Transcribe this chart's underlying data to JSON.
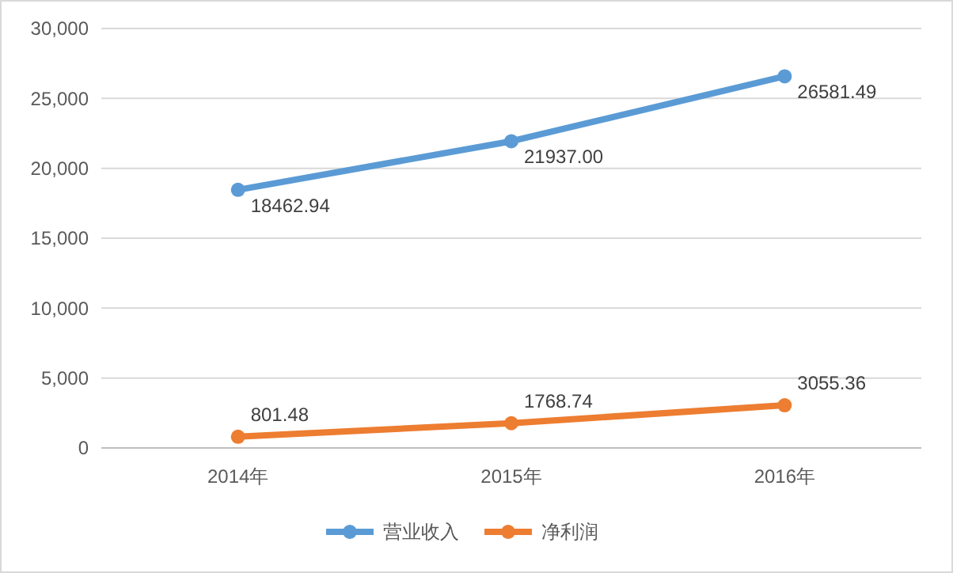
{
  "chart_data": {
    "type": "line",
    "categories": [
      "2014年",
      "2015年",
      "2016年"
    ],
    "series": [
      {
        "name": "营业收入",
        "color": "#5b9bd5",
        "values": [
          18462.94,
          21937.0,
          26581.49
        ],
        "value_labels": [
          "18462.94",
          "21937.00",
          "26581.49"
        ]
      },
      {
        "name": "净利润",
        "color": "#ed7d31",
        "values": [
          801.48,
          1768.74,
          3055.36
        ],
        "value_labels": [
          "801.48",
          "1768.74",
          "3055.36"
        ]
      }
    ],
    "ylim": [
      0,
      30000
    ],
    "yticks": [
      0,
      {
        "value": 5000,
        "label": "5,000"
      },
      {
        "value": 10000,
        "label": "10,000"
      },
      {
        "value": 15000,
        "label": "15,000"
      },
      {
        "value": 20000,
        "label": "20,000"
      },
      {
        "value": 25000,
        "label": "25,000"
      },
      {
        "value": 30000,
        "label": "30,000"
      }
    ],
    "grid": "y",
    "legend": "bottom",
    "marker": "circle",
    "line_style": "solid"
  }
}
